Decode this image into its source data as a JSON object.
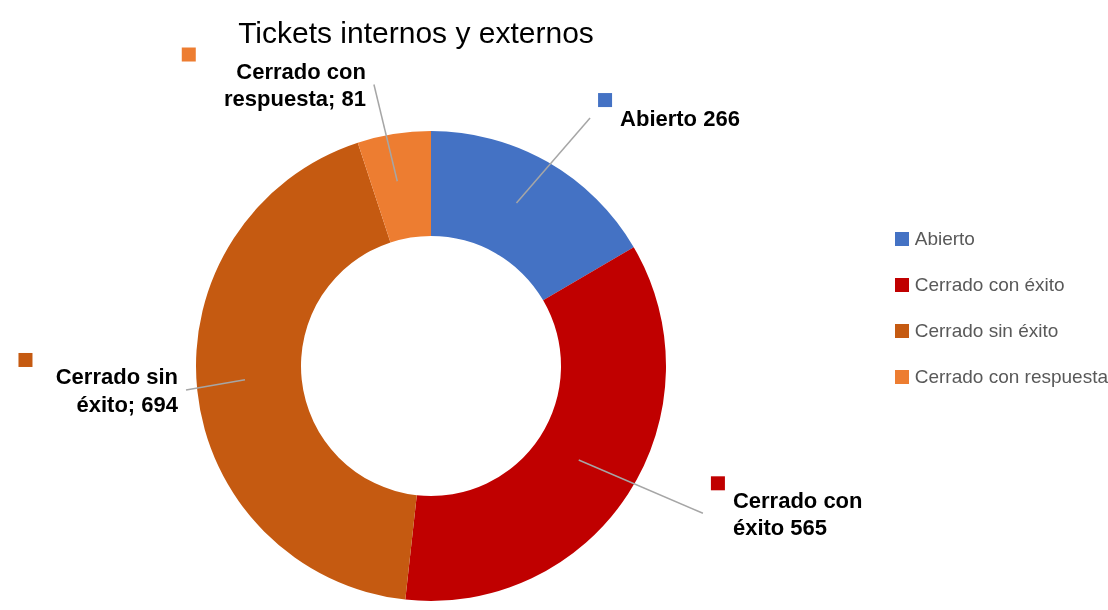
{
  "chart_data": {
    "type": "donut",
    "title": "Tickets internos y externos",
    "categories": [
      "Abierto",
      "Cerrado con éxito",
      "Cerrado sin éxito",
      "Cerrado con respuesta"
    ],
    "values": [
      266,
      565,
      694,
      81
    ],
    "colors": [
      "#4472c4",
      "#c00000",
      "#c55a11",
      "#ed7d31"
    ],
    "value_labels": [
      "Abierto 266",
      "Cerrado con éxito 565",
      "Cerrado sin éxito; 694",
      "Cerrado con respuesta; 81"
    ],
    "legend": "right"
  }
}
